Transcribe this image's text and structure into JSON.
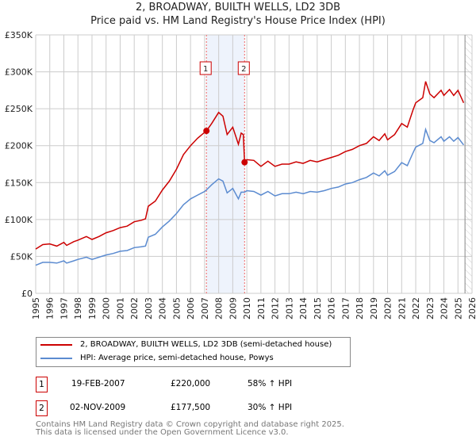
{
  "chart_data": {
    "type": "line",
    "title": "2, BROADWAY, BUILTH WELLS, LD2 3DB",
    "subtitle": "Price paid vs. HM Land Registry's House Price Index (HPI)",
    "xlim": [
      1995,
      2026
    ],
    "ylim": [
      0,
      350000
    ],
    "yticks": [
      {
        "v": 0,
        "label": "£0"
      },
      {
        "v": 50000,
        "label": "£50K"
      },
      {
        "v": 100000,
        "label": "£100K"
      },
      {
        "v": 150000,
        "label": "£150K"
      },
      {
        "v": 200000,
        "label": "£200K"
      },
      {
        "v": 250000,
        "label": "£250K"
      },
      {
        "v": 300000,
        "label": "£300K"
      },
      {
        "v": 350000,
        "label": "£350K"
      }
    ],
    "xticks": [
      "1995",
      "1996",
      "1997",
      "1998",
      "1999",
      "2000",
      "2001",
      "2002",
      "2003",
      "2004",
      "2005",
      "2006",
      "2007",
      "2008",
      "2009",
      "2010",
      "2011",
      "2012",
      "2013",
      "2014",
      "2015",
      "2016",
      "2017",
      "2018",
      "2019",
      "2020",
      "2021",
      "2022",
      "2023",
      "2024",
      "2025",
      "2026"
    ],
    "grid": true,
    "shaded_range": [
      2007.13,
      2009.84
    ],
    "forecast_hatch_from": 2025.5,
    "series": [
      {
        "name": "2, BROADWAY, BUILTH WELLS, LD2 3DB (semi-detached house)",
        "color": "#cc0000",
        "points": [
          [
            1995,
            60000
          ],
          [
            1995.5,
            66000
          ],
          [
            1996,
            67000
          ],
          [
            1996.5,
            64000
          ],
          [
            1997,
            69000
          ],
          [
            1997.2,
            65000
          ],
          [
            1997.7,
            70000
          ],
          [
            1998,
            72000
          ],
          [
            1998.6,
            77000
          ],
          [
            1999,
            73000
          ],
          [
            1999.5,
            77000
          ],
          [
            2000,
            82000
          ],
          [
            2000.5,
            85000
          ],
          [
            2001,
            89000
          ],
          [
            2001.5,
            91000
          ],
          [
            2002,
            97000
          ],
          [
            2002.5,
            99000
          ],
          [
            2002.8,
            101000
          ],
          [
            2003,
            118000
          ],
          [
            2003.5,
            125000
          ],
          [
            2004,
            140000
          ],
          [
            2004.5,
            152000
          ],
          [
            2005,
            168000
          ],
          [
            2005.5,
            188000
          ],
          [
            2006,
            200000
          ],
          [
            2006.5,
            210000
          ],
          [
            2007,
            218000
          ],
          [
            2007.13,
            220000
          ],
          [
            2007.5,
            230000
          ],
          [
            2008,
            245000
          ],
          [
            2008.3,
            240000
          ],
          [
            2008.6,
            215000
          ],
          [
            2009,
            225000
          ],
          [
            2009.4,
            202000
          ],
          [
            2009.6,
            217000
          ],
          [
            2009.75,
            215000
          ],
          [
            2009.84,
            177500
          ],
          [
            2010,
            181000
          ],
          [
            2010.5,
            180000
          ],
          [
            2011,
            172000
          ],
          [
            2011.5,
            179000
          ],
          [
            2012,
            172000
          ],
          [
            2012.5,
            175000
          ],
          [
            2013,
            175000
          ],
          [
            2013.5,
            178000
          ],
          [
            2014,
            176000
          ],
          [
            2014.5,
            180000
          ],
          [
            2015,
            178000
          ],
          [
            2015.5,
            181000
          ],
          [
            2016,
            184000
          ],
          [
            2016.5,
            187000
          ],
          [
            2017,
            192000
          ],
          [
            2017.5,
            195000
          ],
          [
            2018,
            200000
          ],
          [
            2018.5,
            203000
          ],
          [
            2019,
            212000
          ],
          [
            2019.4,
            207000
          ],
          [
            2019.8,
            216000
          ],
          [
            2020,
            208000
          ],
          [
            2020.5,
            215000
          ],
          [
            2021,
            230000
          ],
          [
            2021.4,
            225000
          ],
          [
            2021.8,
            248000
          ],
          [
            2022,
            258000
          ],
          [
            2022.5,
            265000
          ],
          [
            2022.7,
            287000
          ],
          [
            2023,
            270000
          ],
          [
            2023.3,
            265000
          ],
          [
            2023.8,
            275000
          ],
          [
            2024,
            268000
          ],
          [
            2024.4,
            276000
          ],
          [
            2024.7,
            268000
          ],
          [
            2025,
            275000
          ],
          [
            2025.4,
            258000
          ]
        ]
      },
      {
        "name": "HPI: Average price, semi-detached house, Powys",
        "color": "#5b8bd0",
        "points": [
          [
            1995,
            38000
          ],
          [
            1995.5,
            42000
          ],
          [
            1996,
            42000
          ],
          [
            1996.5,
            41000
          ],
          [
            1997,
            44000
          ],
          [
            1997.2,
            41000
          ],
          [
            1997.7,
            44000
          ],
          [
            1998,
            46000
          ],
          [
            1998.6,
            49000
          ],
          [
            1999,
            46000
          ],
          [
            1999.5,
            49000
          ],
          [
            2000,
            52000
          ],
          [
            2000.5,
            54000
          ],
          [
            2001,
            57000
          ],
          [
            2001.5,
            58000
          ],
          [
            2002,
            62000
          ],
          [
            2002.5,
            63000
          ],
          [
            2002.8,
            64000
          ],
          [
            2003,
            76000
          ],
          [
            2003.5,
            80000
          ],
          [
            2004,
            90000
          ],
          [
            2004.5,
            98000
          ],
          [
            2005,
            108000
          ],
          [
            2005.5,
            120000
          ],
          [
            2006,
            128000
          ],
          [
            2006.5,
            133000
          ],
          [
            2007,
            138000
          ],
          [
            2007.13,
            140000
          ],
          [
            2007.5,
            147000
          ],
          [
            2008,
            155000
          ],
          [
            2008.3,
            152000
          ],
          [
            2008.6,
            136000
          ],
          [
            2009,
            142000
          ],
          [
            2009.4,
            128000
          ],
          [
            2009.6,
            137000
          ],
          [
            2009.84,
            137000
          ],
          [
            2010,
            139000
          ],
          [
            2010.5,
            138000
          ],
          [
            2011,
            133000
          ],
          [
            2011.5,
            138000
          ],
          [
            2012,
            132000
          ],
          [
            2012.5,
            135000
          ],
          [
            2013,
            135000
          ],
          [
            2013.5,
            137000
          ],
          [
            2014,
            135000
          ],
          [
            2014.5,
            138000
          ],
          [
            2015,
            137000
          ],
          [
            2015.5,
            139000
          ],
          [
            2016,
            142000
          ],
          [
            2016.5,
            144000
          ],
          [
            2017,
            148000
          ],
          [
            2017.5,
            150000
          ],
          [
            2018,
            154000
          ],
          [
            2018.5,
            157000
          ],
          [
            2019,
            163000
          ],
          [
            2019.4,
            159000
          ],
          [
            2019.8,
            166000
          ],
          [
            2020,
            160000
          ],
          [
            2020.5,
            165000
          ],
          [
            2021,
            177000
          ],
          [
            2021.4,
            173000
          ],
          [
            2021.8,
            190000
          ],
          [
            2022,
            198000
          ],
          [
            2022.5,
            203000
          ],
          [
            2022.7,
            222000
          ],
          [
            2023,
            207000
          ],
          [
            2023.3,
            204000
          ],
          [
            2023.8,
            212000
          ],
          [
            2024,
            206000
          ],
          [
            2024.4,
            212000
          ],
          [
            2024.7,
            206000
          ],
          [
            2025,
            211000
          ],
          [
            2025.4,
            201000
          ]
        ]
      }
    ],
    "sales": [
      {
        "num": "1",
        "x": 2007.13,
        "y": 220000,
        "date": "19-FEB-2007",
        "price": "£220,000",
        "hpi": "58% ↑ HPI"
      },
      {
        "num": "2",
        "x": 2009.84,
        "y": 177500,
        "date": "02-NOV-2009",
        "price": "£177,500",
        "hpi": "30% ↑ HPI"
      }
    ]
  },
  "footer": {
    "line1": "Contains HM Land Registry data © Crown copyright and database right 2025.",
    "line2": "This data is licensed under the Open Government Licence v3.0."
  }
}
